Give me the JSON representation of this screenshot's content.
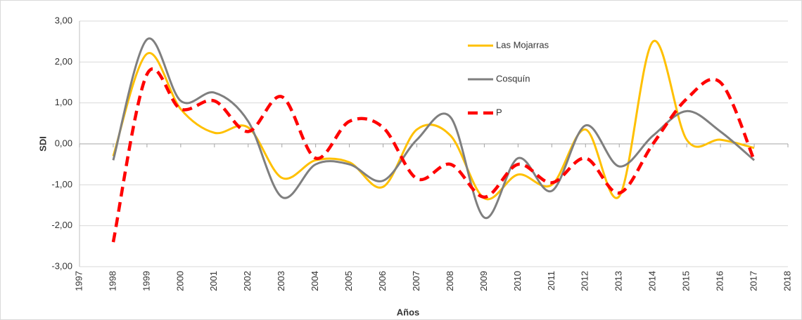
{
  "chart_data": {
    "type": "line",
    "y_label": "SDI",
    "x_label": "Años",
    "x": [
      1998,
      1999,
      2000,
      2001,
      2002,
      2003,
      2004,
      2005,
      2006,
      2007,
      2008,
      2009,
      2010,
      2011,
      2012,
      2013,
      2014,
      2015,
      2016,
      2017
    ],
    "series": [
      {
        "name": "Las Mojarras",
        "color": "#ffc000",
        "values": [
          -0.3,
          2.2,
          0.85,
          0.27,
          0.4,
          -0.83,
          -0.4,
          -0.45,
          -1.05,
          0.35,
          0.2,
          -1.33,
          -0.75,
          -1.0,
          0.35,
          -1.28,
          2.5,
          0.1,
          0.1,
          -0.1
        ]
      },
      {
        "name": "Cosquín",
        "color": "#7f7f7f",
        "values": [
          -0.4,
          2.55,
          1.05,
          1.25,
          0.55,
          -1.3,
          -0.5,
          -0.5,
          -0.9,
          0.1,
          0.65,
          -1.8,
          -0.35,
          -1.15,
          0.45,
          -0.55,
          0.2,
          0.8,
          0.3,
          -0.4
        ]
      },
      {
        "name": "P",
        "color": "#ff0000",
        "dashed": true,
        "values": [
          -2.4,
          1.7,
          0.85,
          1.05,
          0.3,
          1.15,
          -0.35,
          0.55,
          0.4,
          -0.85,
          -0.5,
          -1.3,
          -0.5,
          -0.95,
          -0.35,
          -1.2,
          0.0,
          1.1,
          1.5,
          -0.4
        ]
      }
    ],
    "xlim": [
      1997,
      2018
    ],
    "xticks": [
      1997,
      1998,
      1999,
      2000,
      2001,
      2002,
      2003,
      2004,
      2005,
      2006,
      2007,
      2008,
      2009,
      2010,
      2011,
      2012,
      2013,
      2014,
      2015,
      2016,
      2017,
      2018
    ],
    "ylim": [
      -3,
      3
    ],
    "yticks": [
      {
        "value": -3,
        "label": "-3,00"
      },
      {
        "value": -2,
        "label": "-2,00"
      },
      {
        "value": -1,
        "label": "-1,00"
      },
      {
        "value": 0,
        "label": "0,00"
      },
      {
        "value": 1,
        "label": "1,00"
      },
      {
        "value": 2,
        "label": "2,00"
      },
      {
        "value": 3,
        "label": "3,00"
      }
    ],
    "grid": true,
    "smooth": true,
    "legend": "top-right"
  }
}
